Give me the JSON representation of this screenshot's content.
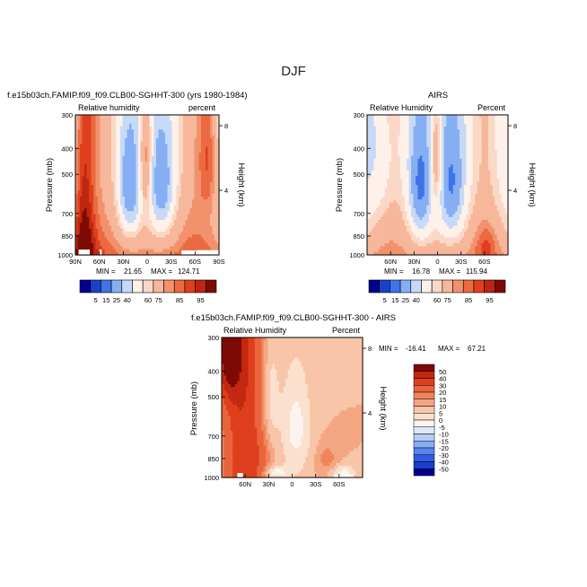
{
  "figure": {
    "title": "DJF"
  },
  "colors": {
    "rh_palette": [
      "#00008f",
      "#1a3fc8",
      "#3f73e8",
      "#86aef2",
      "#c6d9f7",
      "#fdf1ea",
      "#fbd8c6",
      "#f7b79b",
      "#f2926c",
      "#eb6a42",
      "#df3f1c",
      "#bd2610",
      "#7e0a05"
    ],
    "diff_palette": [
      "#00008f",
      "#1a3fc8",
      "#3258e6",
      "#5b82ee",
      "#86aef2",
      "#b5cdf5",
      "#dde8fa",
      "#fbf4ee",
      "#fbe0ce",
      "#f8c5a8",
      "#f4a682",
      "#ef855d",
      "#e9643c",
      "#df3f1c",
      "#c32810",
      "#7e0a05"
    ]
  },
  "chart_data": [
    {
      "type": "heatmap",
      "id": "model",
      "title": "f.e15b03ch.FAMIP.f09_f09.CLB00-SGHHT-300 (yrs 1980-1984)",
      "left_label": "Relative humidity",
      "right_label": "percent",
      "ylabel": "Pressure (mb)",
      "y2label": "Height (km)",
      "xticks": [
        "90N",
        "60N",
        "30N",
        "0",
        "30S",
        "60S",
        "90S"
      ],
      "xlim": [
        90,
        -90
      ],
      "yticks": [
        300,
        400,
        500,
        700,
        850,
        1000
      ],
      "ylim": [
        300,
        1000
      ],
      "height_ticks": [
        8,
        4
      ],
      "stats": {
        "min_label": "MIN =",
        "min": "21.65",
        "max_label": "MAX =",
        "max": "124.71"
      },
      "levels": [
        5,
        15,
        25,
        40,
        60,
        75,
        85,
        95
      ]
    },
    {
      "type": "heatmap",
      "id": "obs",
      "title": "AIRS",
      "left_label": "Relative Humidity",
      "right_label": "Percent",
      "ylabel": "Pressure (mb)",
      "y2label": "Height (km)",
      "xticks": [
        "60N",
        "30N",
        "0",
        "30S",
        "60S"
      ],
      "xlim": [
        90,
        -90
      ],
      "yticks": [
        300,
        400,
        500,
        700,
        850,
        1000
      ],
      "ylim": [
        300,
        1000
      ],
      "height_ticks": [
        8,
        4
      ],
      "stats": {
        "min_label": "MIN =",
        "min": "16.78",
        "max_label": "MAX =",
        "max": "115.94"
      },
      "levels": [
        5,
        15,
        25,
        40,
        60,
        75,
        85,
        95
      ]
    },
    {
      "type": "heatmap",
      "id": "diff",
      "title": "f.e15b03ch.FAMIP.f09_f09.CLB00-SGHHT-300 - AIRS",
      "left_label": "Relative Humidity",
      "right_label": "Percent",
      "ylabel": "Pressure (mb)",
      "y2label": "Height (km)",
      "xticks": [
        "60N",
        "30N",
        "0",
        "30S",
        "60S"
      ],
      "xlim": [
        90,
        -90
      ],
      "yticks": [
        300,
        400,
        500,
        700,
        850,
        1000
      ],
      "ylim": [
        300,
        1000
      ],
      "height_ticks": [
        8,
        4
      ],
      "stats": {
        "min_label": "MIN =",
        "min": "-16.41",
        "max_label": "MAX =",
        "max": "67.21"
      },
      "levels": [
        50,
        40,
        30,
        20,
        15,
        10,
        5,
        0,
        -5,
        -10,
        -15,
        -20,
        -30,
        -40,
        -50
      ]
    }
  ]
}
